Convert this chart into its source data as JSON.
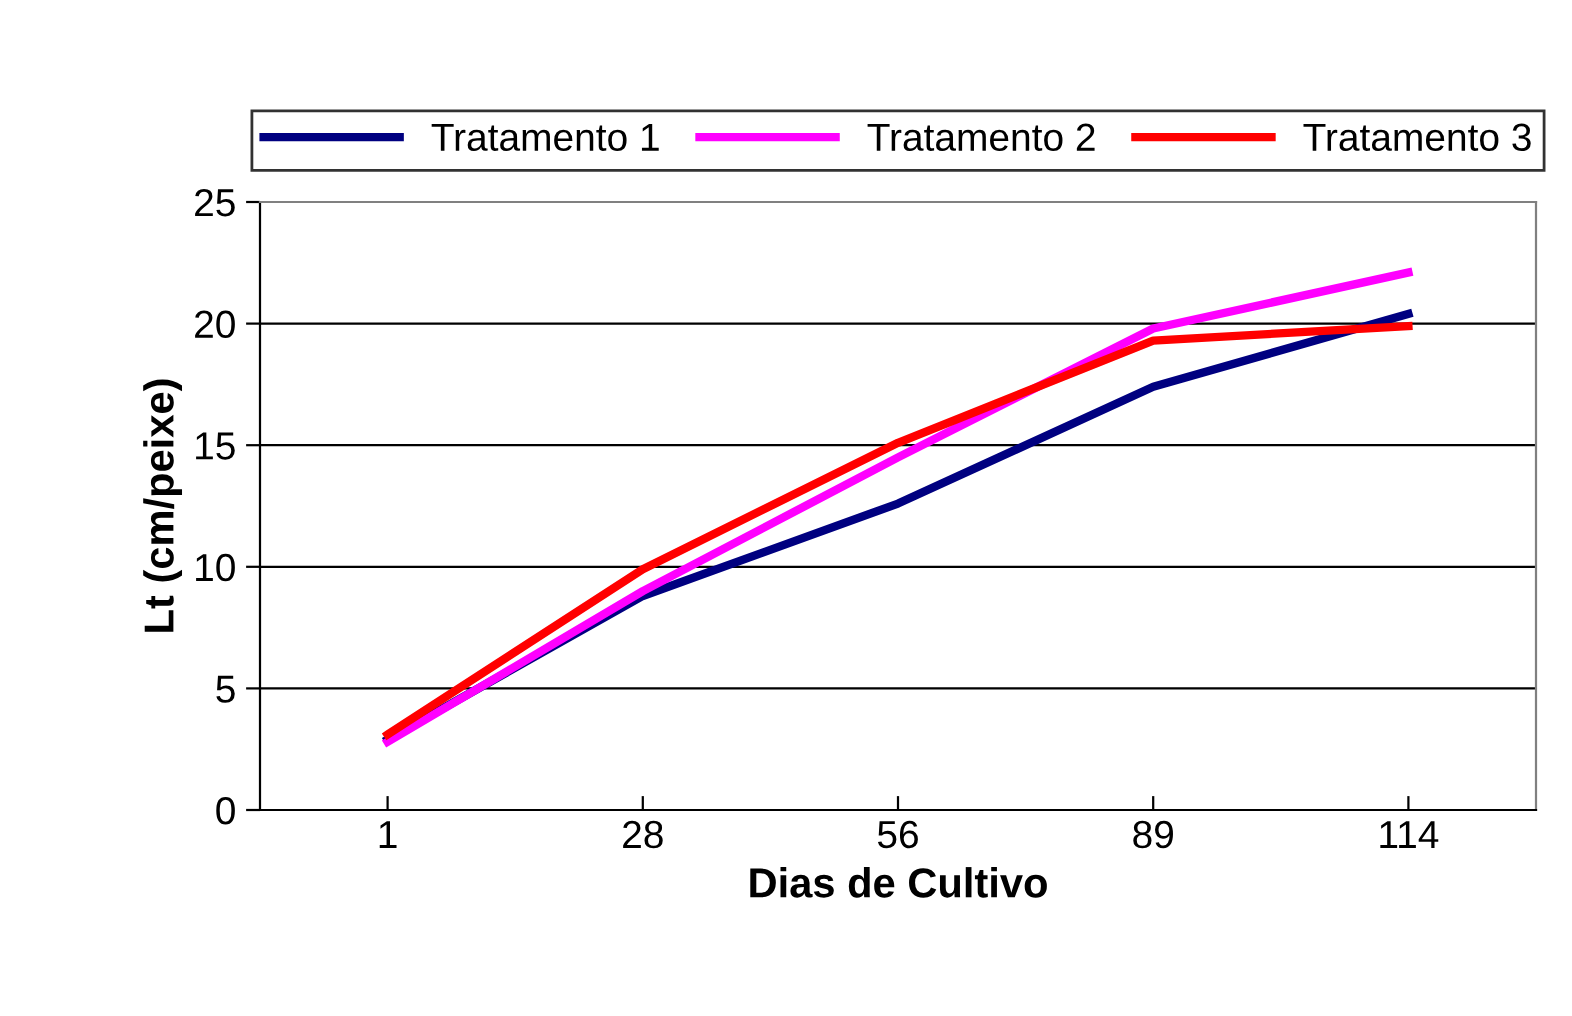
{
  "chart_data": {
    "type": "line",
    "xlabel": "Dias de Cultivo",
    "ylabel": "Lt (cm/peixe)",
    "categories": [
      "1",
      "28",
      "56",
      "89",
      "114"
    ],
    "series": [
      {
        "name": "Tratamento 1",
        "color": "#000080",
        "values": [
          2.9,
          8.8,
          12.6,
          17.4,
          20.4
        ]
      },
      {
        "name": "Tratamento 2",
        "color": "#ff00ff",
        "values": [
          2.8,
          9.0,
          14.5,
          19.8,
          22.1
        ]
      },
      {
        "name": "Tratamento 3",
        "color": "#ff0000",
        "values": [
          3.1,
          9.9,
          15.1,
          19.3,
          19.9
        ]
      }
    ],
    "ylim": [
      0,
      25
    ],
    "yticks": [
      0,
      5,
      10,
      15,
      20,
      25
    ],
    "grid": "y",
    "legend": "top",
    "marker": "none",
    "line_style": "solid"
  }
}
